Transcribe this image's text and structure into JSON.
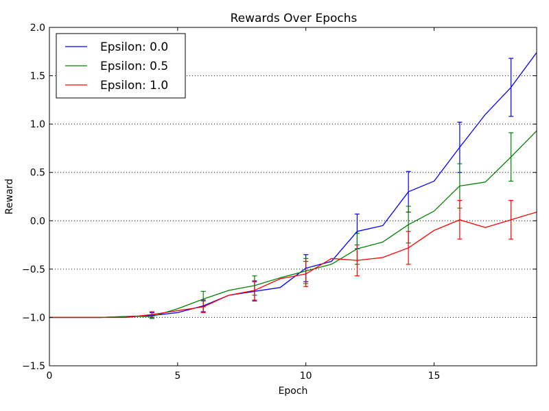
{
  "chart_data": {
    "type": "line",
    "title": "Rewards Over Epochs",
    "xlabel": "Epoch",
    "ylabel": "Reward",
    "xlim": [
      0,
      19
    ],
    "ylim": [
      -1.5,
      2.0
    ],
    "x_ticks": [
      0,
      5,
      10,
      15
    ],
    "x_tick_labels": [
      "0",
      "5",
      "10",
      "15"
    ],
    "y_ticks": [
      -1.5,
      -1.0,
      -0.5,
      0.0,
      0.5,
      1.0,
      1.5,
      2.0
    ],
    "y_tick_labels": [
      "−1.5",
      "−1.0",
      "−0.5",
      "0.0",
      "0.5",
      "1.0",
      "1.5",
      "2.0"
    ],
    "grid": {
      "y": true,
      "x": false,
      "style": "dotted"
    },
    "legend_position": "top-left",
    "x": [
      0,
      1,
      2,
      3,
      4,
      5,
      6,
      7,
      8,
      9,
      10,
      11,
      12,
      13,
      14,
      15,
      16,
      17,
      18,
      19
    ],
    "series": [
      {
        "name": "Epsilon: 0.0",
        "color": "#0000ff",
        "values": [
          -1.0,
          -1.0,
          -1.0,
          -0.99,
          -0.98,
          -0.95,
          -0.88,
          -0.77,
          -0.73,
          -0.69,
          -0.49,
          -0.42,
          -0.11,
          -0.05,
          0.3,
          0.41,
          0.76,
          1.1,
          1.38,
          1.74
        ],
        "errorbars": [
          {
            "x": 4,
            "y": -0.98,
            "err": 0.03
          },
          {
            "x": 6,
            "y": -0.88,
            "err": 0.06
          },
          {
            "x": 8,
            "y": -0.73,
            "err": 0.1
          },
          {
            "x": 10,
            "y": -0.49,
            "err": 0.14
          },
          {
            "x": 12,
            "y": -0.11,
            "err": 0.18
          },
          {
            "x": 14,
            "y": 0.3,
            "err": 0.21
          },
          {
            "x": 16,
            "y": 0.76,
            "err": 0.26
          },
          {
            "x": 18,
            "y": 1.38,
            "err": 0.3
          }
        ]
      },
      {
        "name": "Epsilon: 0.5",
        "color": "#008000",
        "values": [
          -1.0,
          -1.0,
          -1.0,
          -0.99,
          -0.99,
          -0.91,
          -0.81,
          -0.72,
          -0.67,
          -0.59,
          -0.52,
          -0.45,
          -0.29,
          -0.22,
          -0.04,
          0.1,
          0.36,
          0.4,
          0.66,
          0.93
        ],
        "errorbars": [
          {
            "x": 4,
            "y": -0.99,
            "err": 0.02
          },
          {
            "x": 6,
            "y": -0.81,
            "err": 0.08
          },
          {
            "x": 8,
            "y": -0.67,
            "err": 0.1
          },
          {
            "x": 10,
            "y": -0.52,
            "err": 0.13
          },
          {
            "x": 12,
            "y": -0.29,
            "err": 0.16
          },
          {
            "x": 14,
            "y": -0.04,
            "err": 0.19
          },
          {
            "x": 16,
            "y": 0.36,
            "err": 0.23
          },
          {
            "x": 18,
            "y": 0.66,
            "err": 0.25
          }
        ]
      },
      {
        "name": "Epsilon: 1.0",
        "color": "#ff0000",
        "values": [
          -1.0,
          -1.0,
          -1.0,
          -1.0,
          -0.97,
          -0.93,
          -0.89,
          -0.77,
          -0.72,
          -0.6,
          -0.55,
          -0.39,
          -0.41,
          -0.38,
          -0.28,
          -0.1,
          0.01,
          -0.07,
          0.01,
          0.09
        ],
        "errorbars": [
          {
            "x": 4,
            "y": -0.97,
            "err": 0.03
          },
          {
            "x": 6,
            "y": -0.89,
            "err": 0.06
          },
          {
            "x": 8,
            "y": -0.72,
            "err": 0.1
          },
          {
            "x": 10,
            "y": -0.55,
            "err": 0.13
          },
          {
            "x": 12,
            "y": -0.41,
            "err": 0.16
          },
          {
            "x": 14,
            "y": -0.28,
            "err": 0.17
          },
          {
            "x": 16,
            "y": 0.01,
            "err": 0.2
          },
          {
            "x": 18,
            "y": 0.01,
            "err": 0.2
          }
        ]
      }
    ]
  }
}
